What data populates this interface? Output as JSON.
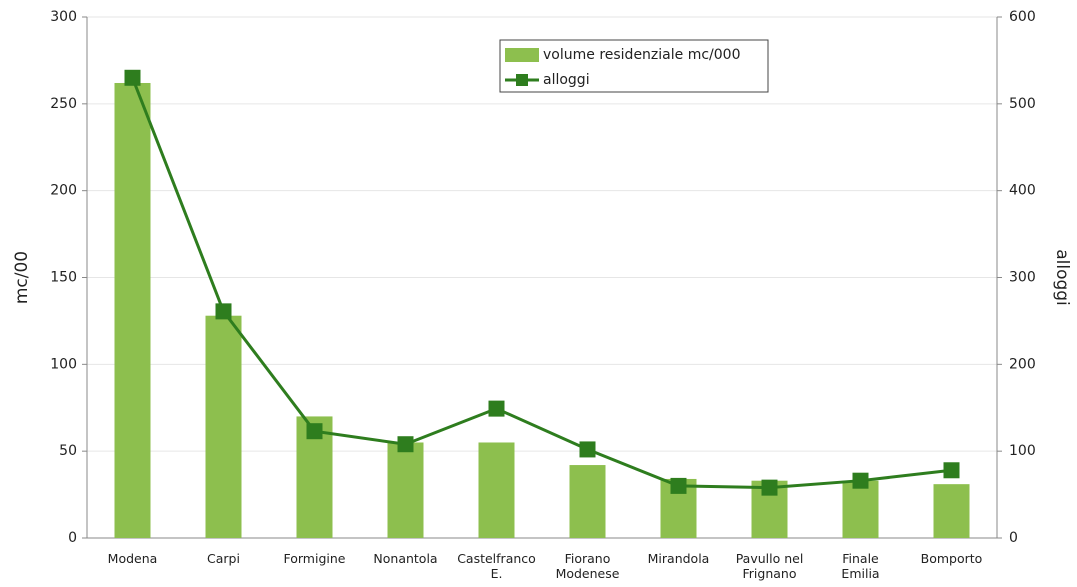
{
  "chart_data": {
    "type": "bar-line",
    "categories": [
      "Modena",
      "Carpi",
      "Formigine",
      "Nonantola",
      "Castelfranco\nE.",
      "Fiorano\nModenese",
      "Mirandola",
      "Pavullo nel\nFrignano",
      "Finale\nEmilia",
      "Bomporto"
    ],
    "series": [
      {
        "name": "volume residenziale mc/000",
        "type": "bar",
        "color": "#8dbf4e",
        "values": [
          262,
          128,
          70,
          55,
          55,
          42,
          34,
          33,
          33,
          31
        ]
      },
      {
        "name": "alloggi",
        "type": "line",
        "axis": "y2",
        "color": "#2e7d1e",
        "values": [
          530,
          261,
          123,
          108,
          149,
          102,
          60,
          58,
          66,
          78
        ]
      }
    ],
    "y_label": "mc/00",
    "y2_label": "alloggi",
    "ylim": [
      0,
      300
    ],
    "yticks": [
      0,
      50,
      100,
      150,
      200,
      250,
      300
    ],
    "y2lim": [
      0,
      600
    ],
    "y2ticks": [
      0,
      100,
      200,
      300,
      400,
      500,
      600
    ],
    "grid": true
  }
}
